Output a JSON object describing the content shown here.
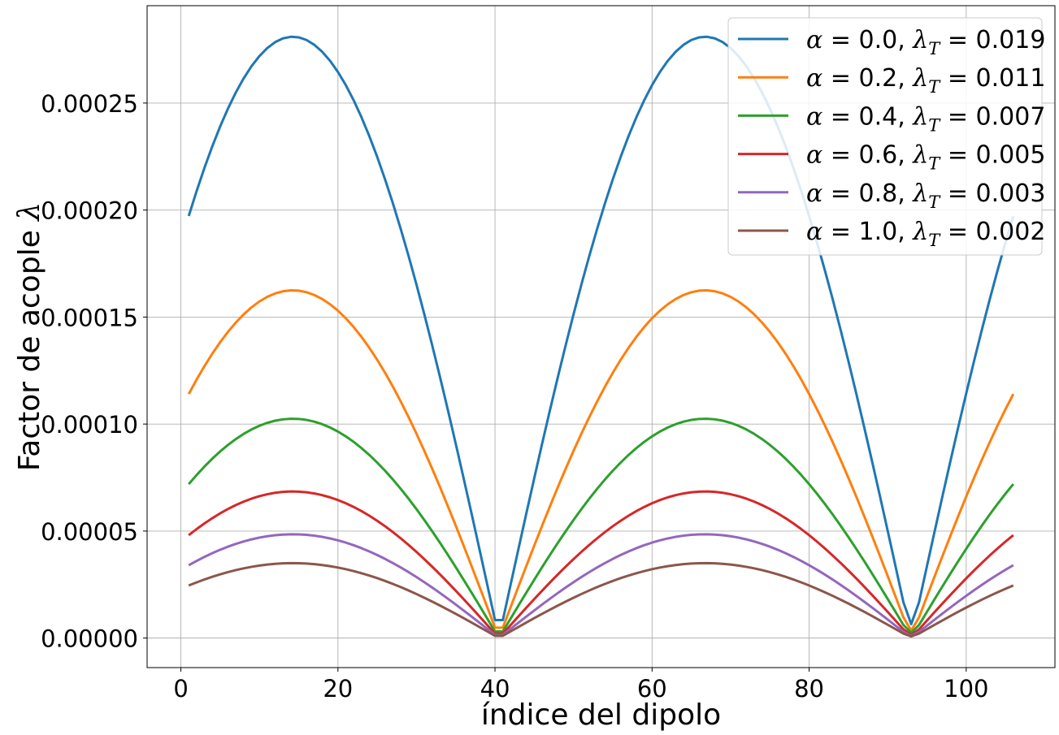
{
  "chart_data": {
    "type": "line",
    "title": "",
    "xlabel": "índice del dipolo",
    "ylabel": "Factor de acople λ",
    "xlim": [
      -4.3,
      111.3
    ],
    "ylim": [
      -1.38e-05,
      0.0002955
    ],
    "xticks": [
      0,
      20,
      40,
      60,
      80,
      100
    ],
    "xtick_labels": [
      "0",
      "20",
      "40",
      "60",
      "80",
      "100"
    ],
    "yticks": [
      0,
      5e-05,
      0.0001,
      0.00015,
      0.0002,
      0.00025
    ],
    "ytick_labels": [
      "0.00000",
      "0.00005",
      "0.00010",
      "0.00015",
      "0.00020",
      "0.00025"
    ],
    "grid": true,
    "legend_position": "top-right",
    "x_range": [
      1,
      106
    ],
    "shape": "λ(i) ≈ peak · |sin(π·(i − 40.5)/52.5)|, minima at i ≈ 40.5 and 93",
    "series": [
      {
        "legend": {
          "alpha": "0.0",
          "lambda_t": "0.019"
        },
        "color": "#1f77b4",
        "peak": 0.000281,
        "start": 0.000199,
        "end": 0.000199,
        "min": 6.5e-06
      },
      {
        "legend": {
          "alpha": "0.2",
          "lambda_t": "0.011"
        },
        "color": "#ff7f0e",
        "peak": 0.0001625,
        "start": 0.000115,
        "end": 0.000115,
        "min": 3.5e-06
      },
      {
        "legend": {
          "alpha": "0.4",
          "lambda_t": "0.007"
        },
        "color": "#2ca02c",
        "peak": 0.0001025,
        "start": 7.25e-05,
        "end": 7.25e-05,
        "min": 2.5e-06
      },
      {
        "legend": {
          "alpha": "0.6",
          "lambda_t": "0.005"
        },
        "color": "#d62728",
        "peak": 6.85e-05,
        "start": 4.85e-05,
        "end": 4.85e-05,
        "min": 1.5e-06
      },
      {
        "legend": {
          "alpha": "0.8",
          "lambda_t": "0.003"
        },
        "color": "#9467bd",
        "peak": 4.85e-05,
        "start": 3.42e-05,
        "end": 3.42e-05,
        "min": 1e-06
      },
      {
        "legend": {
          "alpha": "1.0",
          "lambda_t": "0.002"
        },
        "color": "#8c564b",
        "peak": 3.5e-05,
        "start": 2.48e-05,
        "end": 2.48e-05,
        "min": 8e-07
      }
    ]
  }
}
